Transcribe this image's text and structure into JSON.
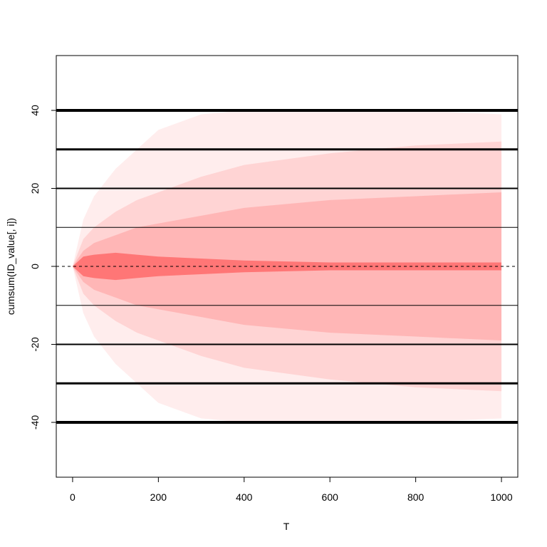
{
  "chart_data": {
    "type": "band",
    "xlabel": "T",
    "ylabel": "cumsum(ID_value[, i])",
    "xlim": [
      -38.1,
      1038.1
    ],
    "ylim": [
      -54.06,
      54.06
    ],
    "xticks": [
      0,
      200,
      400,
      600,
      800,
      1000
    ],
    "yticks": [
      -40,
      -20,
      0,
      20,
      40
    ],
    "x": [
      0,
      25,
      50,
      100,
      150,
      200,
      300,
      400,
      600,
      800,
      1000
    ],
    "bands": [
      {
        "color": "#ff0000",
        "opacity": 0.07,
        "upper": [
          0,
          12,
          18,
          25,
          30,
          35,
          39,
          40,
          40,
          40,
          39
        ],
        "lower": [
          0,
          -12,
          -18,
          -25,
          -30,
          -35,
          -39,
          -40,
          -40,
          -40,
          -39
        ]
      },
      {
        "color": "#ff0000",
        "opacity": 0.1,
        "upper": [
          0,
          7,
          10,
          14,
          17,
          19,
          23,
          26,
          29,
          31,
          32
        ],
        "lower": [
          0,
          -7,
          -10,
          -14,
          -17,
          -19,
          -23,
          -26,
          -29,
          -31,
          -32
        ]
      },
      {
        "color": "#ff0000",
        "opacity": 0.14,
        "upper": [
          0,
          4,
          6,
          8,
          10,
          11,
          13,
          15,
          17,
          18,
          19
        ],
        "lower": [
          0,
          -4,
          -6,
          -8,
          -10,
          -11,
          -13,
          -15,
          -17,
          -18,
          -19
        ]
      },
      {
        "color": "#ff0000",
        "opacity": 0.35,
        "upper": [
          0,
          2.5,
          3,
          3.5,
          3,
          2.5,
          2,
          1.5,
          1,
          1,
          1
        ],
        "lower": [
          0,
          -2.5,
          -3,
          -3.5,
          -3,
          -2.5,
          -2,
          -1.5,
          -1,
          -1,
          -1
        ]
      }
    ],
    "hlines": [
      {
        "value": 40,
        "width": 4,
        "dashed": false
      },
      {
        "value": 30,
        "width": 3,
        "dashed": false
      },
      {
        "value": 20,
        "width": 2,
        "dashed": false
      },
      {
        "value": 10,
        "width": 1,
        "dashed": false
      },
      {
        "value": 0,
        "width": 1,
        "dashed": true
      },
      {
        "value": -10,
        "width": 1,
        "dashed": false
      },
      {
        "value": -20,
        "width": 2,
        "dashed": false
      },
      {
        "value": -30,
        "width": 3,
        "dashed": false
      },
      {
        "value": -40,
        "width": 4,
        "dashed": false
      }
    ]
  }
}
